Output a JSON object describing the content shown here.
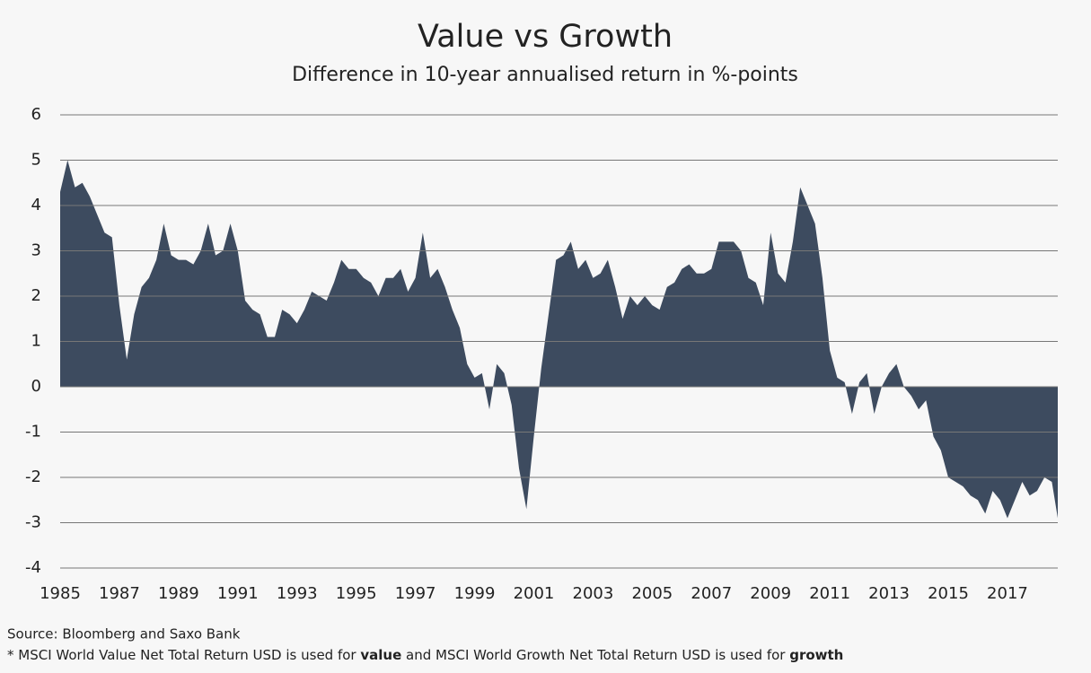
{
  "chart_data": {
    "type": "area",
    "title": "Value vs Growth",
    "subtitle": "Difference in 10-year annualised return in %-points",
    "x": [
      1985,
      1985.25,
      1985.5,
      1985.75,
      1986,
      1986.25,
      1986.5,
      1986.75,
      1987,
      1987.25,
      1987.5,
      1987.75,
      1988,
      1988.25,
      1988.5,
      1988.75,
      1989,
      1989.25,
      1989.5,
      1989.75,
      1990,
      1990.25,
      1990.5,
      1990.75,
      1991,
      1991.25,
      1991.5,
      1991.75,
      1992,
      1992.25,
      1992.5,
      1992.75,
      1993,
      1993.25,
      1993.5,
      1993.75,
      1994,
      1994.25,
      1994.5,
      1994.75,
      1995,
      1995.25,
      1995.5,
      1995.75,
      1996,
      1996.25,
      1996.5,
      1996.75,
      1997,
      1997.25,
      1997.5,
      1997.75,
      1998,
      1998.25,
      1998.5,
      1998.75,
      1999,
      1999.25,
      1999.5,
      1999.75,
      2000,
      2000.25,
      2000.5,
      2000.75,
      2001,
      2001.25,
      2001.5,
      2001.75,
      2002,
      2002.25,
      2002.5,
      2002.75,
      2003,
      2003.25,
      2003.5,
      2003.75,
      2004,
      2004.25,
      2004.5,
      2004.75,
      2005,
      2005.25,
      2005.5,
      2005.75,
      2006,
      2006.25,
      2006.5,
      2006.75,
      2007,
      2007.25,
      2007.5,
      2007.75,
      2008,
      2008.25,
      2008.5,
      2008.75,
      2009,
      2009.25,
      2009.5,
      2009.75,
      2010,
      2010.25,
      2010.5,
      2010.75,
      2011,
      2011.25,
      2011.5,
      2011.75,
      2012,
      2012.25,
      2012.5,
      2012.75,
      2013,
      2013.25,
      2013.5,
      2013.75,
      2014,
      2014.25,
      2014.5,
      2014.75,
      2015,
      2015.25,
      2015.5,
      2015.75,
      2016,
      2016.25,
      2016.5,
      2016.75,
      2017,
      2017.25,
      2017.5,
      2017.75,
      2018,
      2018.25,
      2018.5,
      2018.7
    ],
    "series": [
      {
        "color": "#3d4b5f",
        "values": [
          4.3,
          5.0,
          4.4,
          4.5,
          4.2,
          3.8,
          3.4,
          3.3,
          1.8,
          0.6,
          1.6,
          2.2,
          2.4,
          2.8,
          3.6,
          2.9,
          2.8,
          2.8,
          2.7,
          3.0,
          3.6,
          2.9,
          3.0,
          3.6,
          3.0,
          1.9,
          1.7,
          1.6,
          1.1,
          1.1,
          1.7,
          1.6,
          1.4,
          1.7,
          2.1,
          2.0,
          1.9,
          2.3,
          2.8,
          2.6,
          2.6,
          2.4,
          2.3,
          2.0,
          2.4,
          2.4,
          2.6,
          2.1,
          2.4,
          3.4,
          2.4,
          2.6,
          2.2,
          1.7,
          1.3,
          0.5,
          0.2,
          0.3,
          -0.5,
          0.5,
          0.3,
          -0.4,
          -1.8,
          -2.7,
          -1.1,
          0.4,
          1.6,
          2.8,
          2.9,
          3.2,
          2.6,
          2.8,
          2.4,
          2.5,
          2.8,
          2.2,
          1.5,
          2.0,
          1.8,
          2.0,
          1.8,
          1.7,
          2.2,
          2.3,
          2.6,
          2.7,
          2.5,
          2.5,
          2.6,
          3.2,
          3.2,
          3.2,
          3.0,
          2.4,
          2.3,
          1.8,
          3.4,
          2.5,
          2.3,
          3.2,
          4.4,
          4.0,
          3.6,
          2.4,
          0.8,
          0.2,
          0.1,
          -0.6,
          0.1,
          0.3,
          -0.6,
          0.0,
          0.3,
          0.5,
          0.0,
          -0.2,
          -0.5,
          -0.3,
          -1.1,
          -1.4,
          -2.0,
          -2.1,
          -2.2,
          -2.4,
          -2.5,
          -2.8,
          -2.3,
          -2.5,
          -2.9,
          -2.5,
          -2.1,
          -2.4,
          -2.3,
          -2.0,
          -2.1,
          -2.9
        ]
      }
    ],
    "xlim": [
      1985,
      2018.7
    ],
    "xticks": [
      1985,
      1987,
      1989,
      1991,
      1993,
      1995,
      1997,
      1999,
      2001,
      2003,
      2005,
      2007,
      2009,
      2011,
      2013,
      2015,
      2017
    ],
    "ylim": [
      -4,
      6
    ],
    "yticks": [
      -4,
      -3,
      -2,
      -1,
      0,
      1,
      2,
      3,
      4,
      5,
      6
    ],
    "grid": true,
    "source": "Source: Bloomberg and Saxo Bank",
    "footnote": [
      "* MSCI World Value Net Total Return USD is used for ",
      "value",
      " and MSCI World Growth Net Total Return USD is used for ",
      "growth"
    ]
  }
}
